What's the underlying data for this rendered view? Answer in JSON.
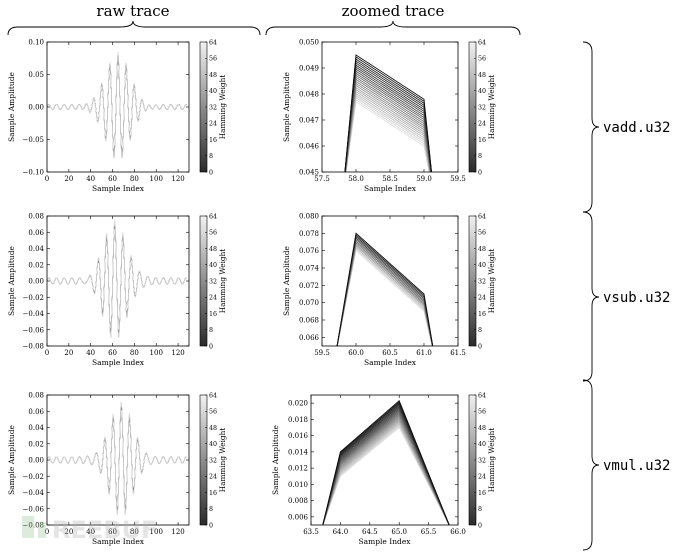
{
  "column_titles": [
    "raw trace",
    "zoomed trace"
  ],
  "row_labels": [
    "vadd.u32",
    "vsub.u32",
    "vmul.u32"
  ],
  "colorbar": {
    "label": "Hamming Weight",
    "ticks": [
      0,
      8,
      16,
      24,
      32,
      40,
      48,
      56,
      64
    ]
  },
  "watermark": "REEBUF",
  "chart_data": [
    {
      "type": "line",
      "panel": "raw-vadd",
      "xlabel": "Sample Index",
      "ylabel": "Sample Amplitude",
      "xlim": [
        0,
        130
      ],
      "ylim": [
        -0.1,
        0.1
      ],
      "xticks": [
        0,
        20,
        40,
        60,
        80,
        100,
        120
      ],
      "yticks": [
        -0.1,
        -0.05,
        0.0,
        0.05,
        0.1
      ],
      "ytick_labels": [
        "−0.10",
        "−0.05",
        "0.00",
        "0.05",
        "0.10"
      ],
      "wave": {
        "center": 65,
        "amplitude": 0.085,
        "spread": 16,
        "period": 7.5
      }
    },
    {
      "type": "line",
      "panel": "zoom-vadd",
      "xlabel": "Sample Index",
      "ylabel": "Sample Amplitude",
      "xlim": [
        57.5,
        59.5
      ],
      "ylim": [
        0.045,
        0.05
      ],
      "xticks": [
        57.5,
        58.0,
        58.5,
        59.0,
        59.5
      ],
      "yticks": [
        0.045,
        0.046,
        0.047,
        0.048,
        0.049,
        0.05
      ],
      "x": [
        57.8,
        58.0,
        59.0,
        59.15
      ],
      "series_count": 24,
      "series_range": {
        "peak1": [
          0.0477,
          0.0495
        ],
        "peak2": [
          0.046,
          0.0478
        ],
        "start": 0.044,
        "end": 0.044
      }
    },
    {
      "type": "line",
      "panel": "raw-vsub",
      "xlabel": "Sample Index",
      "ylabel": "Sample Amplitude",
      "xlim": [
        0,
        130
      ],
      "ylim": [
        -0.08,
        0.08
      ],
      "xticks": [
        0,
        20,
        40,
        60,
        80,
        100,
        120
      ],
      "yticks": [
        -0.08,
        -0.06,
        -0.04,
        -0.02,
        0.0,
        0.02,
        0.04,
        0.06,
        0.08
      ],
      "ytick_labels": [
        "−0.08",
        "−0.06",
        "−0.04",
        "−0.02",
        "0.00",
        "0.02",
        "0.04",
        "0.06",
        "0.08"
      ],
      "wave": {
        "center": 62,
        "amplitude": 0.075,
        "spread": 16,
        "period": 7.5
      }
    },
    {
      "type": "line",
      "panel": "zoom-vsub",
      "xlabel": "Sample Index",
      "ylabel": "Sample Amplitude",
      "xlim": [
        59.5,
        61.5
      ],
      "ylim": [
        0.065,
        0.08
      ],
      "xticks": [
        59.5,
        60.0,
        60.5,
        61.0,
        61.5
      ],
      "yticks": [
        0.066,
        0.068,
        0.07,
        0.072,
        0.074,
        0.076,
        0.078,
        0.08
      ],
      "x": [
        59.7,
        60.0,
        61.0,
        61.15
      ],
      "series_count": 12,
      "series_range": {
        "peak1": [
          0.076,
          0.078
        ],
        "peak2": [
          0.069,
          0.071
        ],
        "start": 0.064,
        "end": 0.064
      }
    },
    {
      "type": "line",
      "panel": "raw-vmul",
      "xlabel": "Sample Index",
      "ylabel": "Sample Amplitude",
      "xlim": [
        0,
        130
      ],
      "ylim": [
        -0.08,
        0.08
      ],
      "xticks": [
        0,
        20,
        40,
        60,
        80,
        100,
        120
      ],
      "yticks": [
        -0.08,
        -0.06,
        -0.04,
        -0.02,
        0.0,
        0.02,
        0.04,
        0.06,
        0.08
      ],
      "ytick_labels": [
        "−0.08",
        "−0.06",
        "−0.04",
        "−0.02",
        "0.00",
        "0.02",
        "0.04",
        "0.06",
        "0.08"
      ],
      "wave": {
        "center": 68,
        "amplitude": 0.072,
        "spread": 16,
        "period": 7.5
      }
    },
    {
      "type": "line",
      "panel": "zoom-vmul",
      "xlabel": "Sample Index",
      "ylabel": "Sample Amplitude",
      "xlim": [
        63.5,
        66.0
      ],
      "ylim": [
        0.005,
        0.021
      ],
      "xticks": [
        63.5,
        64.0,
        64.5,
        65.0,
        65.5,
        66.0
      ],
      "yticks": [
        0.006,
        0.008,
        0.01,
        0.012,
        0.014,
        0.016,
        0.018,
        0.02
      ],
      "x": [
        63.7,
        64.0,
        65.0,
        65.85
      ],
      "series_count": 24,
      "series_range": {
        "peak1": [
          0.011,
          0.014
        ],
        "peak2": [
          0.017,
          0.0203
        ],
        "start": 0.005,
        "end": 0.005
      }
    }
  ]
}
